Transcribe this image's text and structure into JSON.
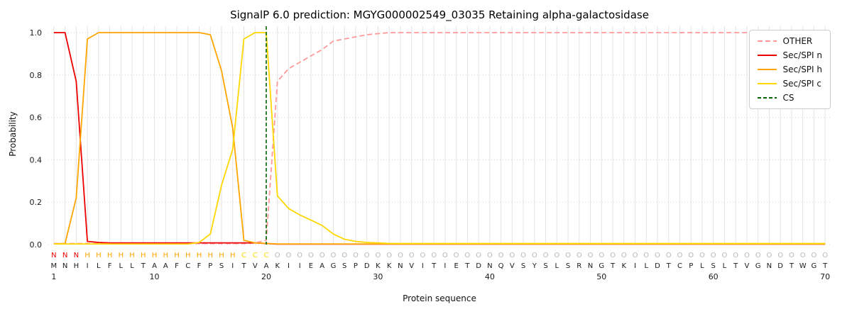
{
  "chart_data": {
    "type": "line",
    "title": "SignalP 6.0 prediction: MGYG000002549_03035 Retaining alpha-galactosidase",
    "xlabel": "Protein sequence",
    "ylabel": "Probability",
    "xlim": [
      0.5,
      70.5
    ],
    "ylim": [
      0.0,
      1.05
    ],
    "xticks": [
      1,
      10,
      20,
      30,
      40,
      50,
      60,
      70
    ],
    "yticks": [
      0.0,
      0.2,
      0.4,
      0.6,
      0.8,
      1.0
    ],
    "grid": true,
    "legend_position": "upper right",
    "x": [
      1,
      2,
      3,
      4,
      5,
      6,
      7,
      8,
      9,
      10,
      11,
      12,
      13,
      14,
      15,
      16,
      17,
      18,
      19,
      20,
      21,
      22,
      23,
      24,
      25,
      26,
      27,
      28,
      29,
      30,
      31,
      32,
      33,
      34,
      35,
      36,
      37,
      38,
      39,
      40,
      41,
      42,
      43,
      44,
      45,
      46,
      47,
      48,
      49,
      50,
      51,
      52,
      53,
      54,
      55,
      56,
      57,
      58,
      59,
      60,
      61,
      62,
      63,
      64,
      65,
      66,
      67,
      68,
      69,
      70
    ],
    "series": [
      {
        "name": "OTHER",
        "color": "#ff9999",
        "dash": "7,4",
        "values": [
          0.005,
          0.005,
          0.005,
          0.005,
          0.005,
          0.005,
          0.005,
          0.005,
          0.005,
          0.005,
          0.005,
          0.005,
          0.005,
          0.005,
          0.005,
          0.005,
          0.005,
          0.005,
          0.008,
          0.02,
          0.77,
          0.83,
          0.86,
          0.89,
          0.92,
          0.96,
          0.97,
          0.98,
          0.99,
          0.995,
          1.0,
          1.0,
          1.0,
          1.0,
          1.0,
          1.0,
          1.0,
          1.0,
          1.0,
          1.0,
          1.0,
          1.0,
          1.0,
          1.0,
          1.0,
          1.0,
          1.0,
          1.0,
          1.0,
          1.0,
          1.0,
          1.0,
          1.0,
          1.0,
          1.0,
          1.0,
          1.0,
          1.0,
          1.0,
          1.0,
          1.0,
          1.0,
          1.0,
          1.0,
          1.0,
          1.0,
          1.0,
          1.0,
          1.0,
          1.0
        ]
      },
      {
        "name": "Sec/SPI n",
        "color": "#ee0000",
        "dash": null,
        "values": [
          1.0,
          1.0,
          0.77,
          0.015,
          0.01,
          0.008,
          0.008,
          0.008,
          0.008,
          0.008,
          0.008,
          0.008,
          0.008,
          0.008,
          0.008,
          0.008,
          0.008,
          0.008,
          0.008,
          0.005,
          0.002,
          0.002,
          0.002,
          0.002,
          0.002,
          0.002,
          0.002,
          0.002,
          0.002,
          0.002,
          0.002,
          0.002,
          0.002,
          0.002,
          0.002,
          0.002,
          0.002,
          0.002,
          0.002,
          0.002,
          0.002,
          0.002,
          0.002,
          0.002,
          0.002,
          0.002,
          0.002,
          0.002,
          0.002,
          0.002,
          0.002,
          0.002,
          0.002,
          0.002,
          0.002,
          0.002,
          0.002,
          0.002,
          0.002,
          0.002,
          0.002,
          0.002,
          0.002,
          0.002,
          0.002,
          0.002,
          0.002,
          0.002,
          0.002,
          0.002
        ]
      },
      {
        "name": "Sec/SPI h",
        "color": "#ffa500",
        "dash": null,
        "values": [
          0.003,
          0.005,
          0.22,
          0.97,
          1.0,
          1.0,
          1.0,
          1.0,
          1.0,
          1.0,
          1.0,
          1.0,
          1.0,
          1.0,
          0.99,
          0.82,
          0.55,
          0.02,
          0.008,
          0.005,
          0.003,
          0.003,
          0.003,
          0.003,
          0.003,
          0.003,
          0.003,
          0.003,
          0.003,
          0.003,
          0.003,
          0.003,
          0.003,
          0.003,
          0.003,
          0.003,
          0.003,
          0.003,
          0.003,
          0.003,
          0.003,
          0.003,
          0.003,
          0.003,
          0.003,
          0.003,
          0.003,
          0.003,
          0.003,
          0.003,
          0.003,
          0.003,
          0.003,
          0.003,
          0.003,
          0.003,
          0.003,
          0.003,
          0.003,
          0.003,
          0.003,
          0.003,
          0.003,
          0.003,
          0.003,
          0.003,
          0.003,
          0.003,
          0.003,
          0.003
        ]
      },
      {
        "name": "Sec/SPI c",
        "color": "#ffd700",
        "dash": null,
        "values": [
          0.003,
          0.003,
          0.003,
          0.003,
          0.003,
          0.003,
          0.003,
          0.003,
          0.003,
          0.003,
          0.003,
          0.003,
          0.003,
          0.01,
          0.05,
          0.28,
          0.45,
          0.97,
          1.0,
          1.0,
          0.23,
          0.17,
          0.14,
          0.115,
          0.09,
          0.05,
          0.025,
          0.015,
          0.01,
          0.008,
          0.005,
          0.005,
          0.005,
          0.005,
          0.005,
          0.005,
          0.005,
          0.005,
          0.005,
          0.005,
          0.005,
          0.005,
          0.005,
          0.005,
          0.005,
          0.005,
          0.005,
          0.005,
          0.005,
          0.005,
          0.005,
          0.005,
          0.005,
          0.005,
          0.005,
          0.005,
          0.005,
          0.005,
          0.005,
          0.005,
          0.005,
          0.005,
          0.005,
          0.005,
          0.005,
          0.005,
          0.005,
          0.005,
          0.005,
          0.005
        ]
      }
    ],
    "cs_line": {
      "name": "CS",
      "position": 20,
      "color": "#006400",
      "dash": "5,3"
    },
    "sequence": "MNHILFLLTAAFCFPSITVAKIIEAGSPDKKNVITIETDNQVSYSLSRNGTKILDTCPLSLTVGNDTWGT",
    "region_labels": "NNNHHHHHHHHHHHHHHCCCOOOOOOOOOOOOOOOOOOOOOOOOOOOOOOOOOOOOOOOOOOOOOOOOOO",
    "region_colors": {
      "N": "#ee0000",
      "H": "#ffa500",
      "C": "#ffd700",
      "O": "#b8b8b8"
    },
    "sequence_color": "#1a1a1a"
  },
  "legend": {
    "entries": [
      {
        "label": "OTHER",
        "color": "#ff9999",
        "dash": "7,4"
      },
      {
        "label": "Sec/SPI n",
        "color": "#ee0000",
        "dash": null
      },
      {
        "label": "Sec/SPI h",
        "color": "#ffa500",
        "dash": null
      },
      {
        "label": "Sec/SPI c",
        "color": "#ffd700",
        "dash": null
      },
      {
        "label": "CS",
        "color": "#006400",
        "dash": "5,3"
      }
    ]
  },
  "style_colors": {
    "vertical_grid": "#e3e3e3",
    "horizontal_grid": "#d8d8d8",
    "tick_text": "#1a1a1a"
  }
}
